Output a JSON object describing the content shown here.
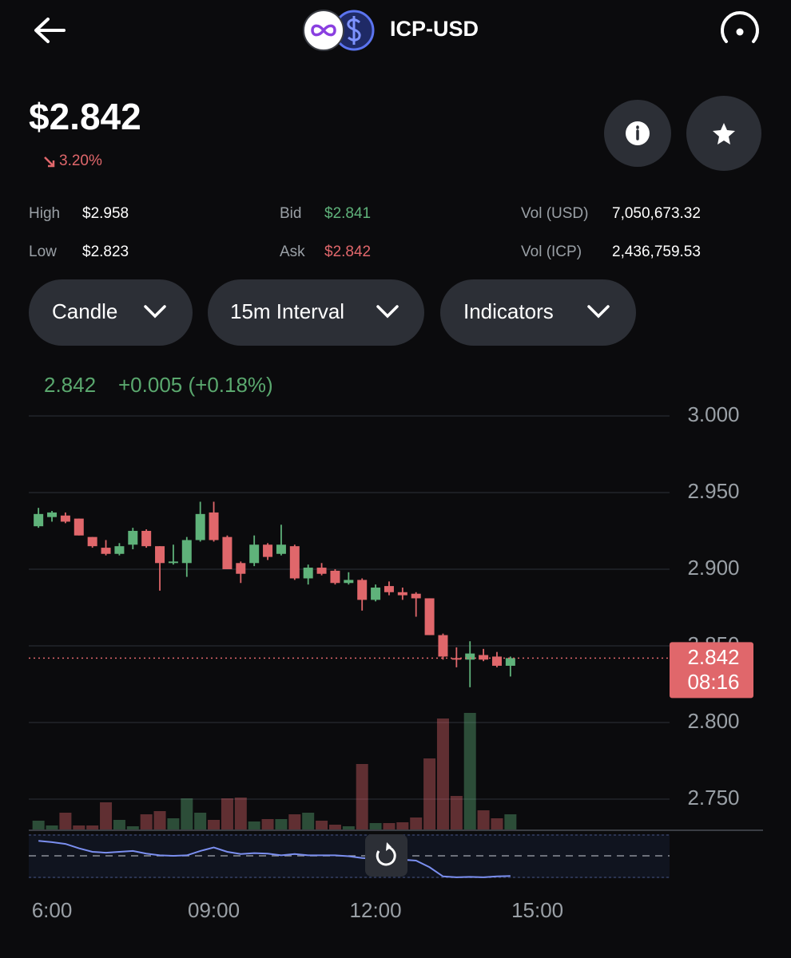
{
  "header": {
    "pair": "ICP-USD",
    "price": "$2.842",
    "change": "3.20%"
  },
  "stats": [
    {
      "label": "High",
      "value": "$2.958"
    },
    {
      "label": "Low",
      "value": "$2.823"
    },
    {
      "label": "Bid",
      "value": "$2.841"
    },
    {
      "label": "Ask",
      "value": "$2.842"
    },
    {
      "label": "Vol (USD)",
      "value": "7,050,673.32"
    },
    {
      "label": "Vol (ICP)",
      "value": "2,436,759.53"
    }
  ],
  "buttons": [
    "Candle",
    "15m Interval",
    "Indicators"
  ],
  "chart_data": {
    "type": "candlestick",
    "last_price": 2.842,
    "change": "+0.005 (+0.18%)",
    "countdown": "08:16",
    "up_color": "#5fb27a",
    "down_color": "#e0676b",
    "indicator_color": "#7b8ff0",
    "grid": true,
    "x": [
      5.75,
      6,
      6.25,
      6.5,
      6.75,
      7,
      7.25,
      7.5,
      7.75,
      8,
      8.25,
      8.5,
      8.75,
      9,
      9.25,
      9.5,
      9.75,
      10,
      10.25,
      10.5,
      10.75,
      11,
      11.25,
      11.5,
      11.75,
      12,
      12.25,
      12.5,
      12.75,
      13,
      13.25,
      13.5,
      13.75,
      14,
      14.25,
      14.5
    ],
    "open": [
      2.928,
      2.934,
      2.935,
      2.933,
      2.921,
      2.914,
      2.91,
      2.916,
      2.925,
      2.915,
      2.904,
      2.904,
      2.919,
      2.937,
      2.921,
      2.904,
      2.904,
      2.916,
      2.91,
      2.915,
      2.894,
      2.901,
      2.899,
      2.891,
      2.893,
      2.88,
      2.889,
      2.885,
      2.884,
      2.881,
      2.857,
      2.842,
      2.841,
      2.844,
      2.843,
      2.837
    ],
    "high": [
      2.94,
      2.938,
      2.937,
      2.933,
      2.921,
      2.919,
      2.917,
      2.927,
      2.926,
      2.915,
      2.916,
      2.921,
      2.944,
      2.944,
      2.922,
      2.905,
      2.922,
      2.917,
      2.929,
      2.916,
      2.903,
      2.904,
      2.9,
      2.898,
      2.894,
      2.89,
      2.892,
      2.888,
      2.885,
      2.881,
      2.858,
      2.849,
      2.853,
      2.848,
      2.846,
      2.843
    ],
    "low": [
      2.927,
      2.931,
      2.93,
      2.922,
      2.914,
      2.909,
      2.909,
      2.913,
      2.914,
      2.886,
      2.903,
      2.895,
      2.918,
      2.918,
      2.9,
      2.891,
      2.902,
      2.906,
      2.909,
      2.893,
      2.89,
      2.896,
      2.89,
      2.89,
      2.873,
      2.879,
      2.883,
      2.88,
      2.869,
      2.857,
      2.841,
      2.836,
      2.823,
      2.84,
      2.836,
      2.83
    ],
    "close": [
      2.936,
      2.937,
      2.931,
      2.922,
      2.915,
      2.91,
      2.915,
      2.925,
      2.915,
      2.904,
      2.905,
      2.919,
      2.936,
      2.919,
      2.9,
      2.897,
      2.916,
      2.908,
      2.916,
      2.894,
      2.901,
      2.897,
      2.891,
      2.893,
      2.88,
      2.888,
      2.885,
      2.883,
      2.881,
      2.857,
      2.843,
      2.841,
      2.845,
      2.841,
      2.837,
      2.842
    ],
    "volume": [
      12,
      6,
      22,
      6,
      6,
      35,
      13,
      5,
      20,
      24,
      15,
      40,
      22,
      13,
      40,
      41,
      11,
      14,
      14,
      20,
      22,
      12,
      7,
      5,
      83,
      9,
      9,
      10,
      16,
      90,
      140,
      43,
      147,
      25,
      15,
      20
    ],
    "indicator": [
      85,
      82,
      78,
      68,
      60,
      58,
      60,
      62,
      56,
      52,
      51,
      52,
      62,
      70,
      60,
      55,
      57,
      56,
      52,
      55,
      52,
      52,
      52,
      50,
      46,
      44,
      43,
      42,
      40,
      25,
      4,
      2,
      3,
      2,
      4,
      5
    ],
    "xlim": [
      5.57,
      17.45
    ],
    "ylim": [
      2.7297,
      3.0083
    ],
    "vlim": [
      0,
      535
    ],
    "indicator_lim": [
      0,
      100
    ],
    "xticks": [
      {
        "value": 6,
        "label": "6:00"
      },
      {
        "value": 9,
        "label": "09:00"
      },
      {
        "value": 12,
        "label": "12:00"
      },
      {
        "value": 15,
        "label": "15:00"
      }
    ],
    "yticks": [
      {
        "value": 3.0,
        "label": "3.000"
      },
      {
        "value": 2.95,
        "label": "2.950"
      },
      {
        "value": 2.9,
        "label": "2.900"
      },
      {
        "value": 2.85,
        "label": "2.850"
      },
      {
        "value": 2.8,
        "label": "2.800"
      },
      {
        "value": 2.75,
        "label": "2.750"
      }
    ]
  }
}
